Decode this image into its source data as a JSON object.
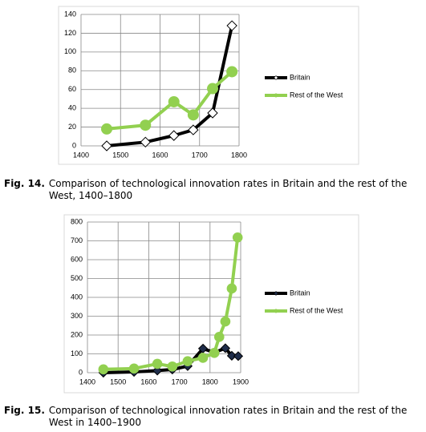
{
  "chart_data": [
    {
      "type": "line",
      "caption_label": "Fig. 14.",
      "caption": "Comparison of technological innovation rates in Britain and the rest of the West, 1400–1800",
      "xlim": [
        1400,
        1800
      ],
      "xticks": [
        1400,
        1500,
        1600,
        1700,
        1800
      ],
      "ylim": [
        0,
        140
      ],
      "yticks": [
        0,
        20,
        40,
        60,
        80,
        100,
        120,
        140
      ],
      "grid": true,
      "legend": "right",
      "series": [
        {
          "name": "Britain",
          "color": "#000000",
          "marker": "diamond",
          "marker_color": "#ffffff",
          "x": [
            1465,
            1563,
            1635,
            1684,
            1733,
            1782
          ],
          "values": [
            0,
            4,
            11,
            17,
            35,
            128
          ]
        },
        {
          "name": "Rest of the West",
          "color": "#92d050",
          "marker": "circle",
          "marker_color": "#92d050",
          "x": [
            1465,
            1563,
            1635,
            1684,
            1733,
            1782
          ],
          "values": [
            18,
            22,
            47,
            33,
            61,
            79
          ]
        }
      ]
    },
    {
      "type": "line",
      "caption_label": "Fig. 15.",
      "caption": "Comparison of technological innovation rates in Britain and the rest of the West in 1400–1900",
      "xlim": [
        1400,
        1900
      ],
      "xticks": [
        1400,
        1500,
        1600,
        1700,
        1800,
        1900
      ],
      "ylim": [
        0,
        800
      ],
      "yticks": [
        0,
        100,
        200,
        300,
        400,
        500,
        600,
        700,
        800
      ],
      "grid": true,
      "legend": "right",
      "series": [
        {
          "name": "Britain",
          "color": "#000000",
          "marker": "diamond",
          "marker_color": "#1f2d4a",
          "x": [
            1452,
            1552,
            1628,
            1677,
            1727,
            1777,
            1814,
            1850,
            1871,
            1892
          ],
          "values": [
            0,
            4,
            11,
            17,
            35,
            128,
            107,
            130,
            90,
            88
          ]
        },
        {
          "name": "Rest of the West",
          "color": "#92d050",
          "marker": "circle",
          "marker_color": "#92d050",
          "x": [
            1452,
            1552,
            1628,
            1677,
            1727,
            1777,
            1814,
            1830,
            1850,
            1871,
            1890
          ],
          "values": [
            18,
            22,
            47,
            33,
            61,
            79,
            105,
            190,
            272,
            447,
            718
          ]
        }
      ]
    }
  ]
}
